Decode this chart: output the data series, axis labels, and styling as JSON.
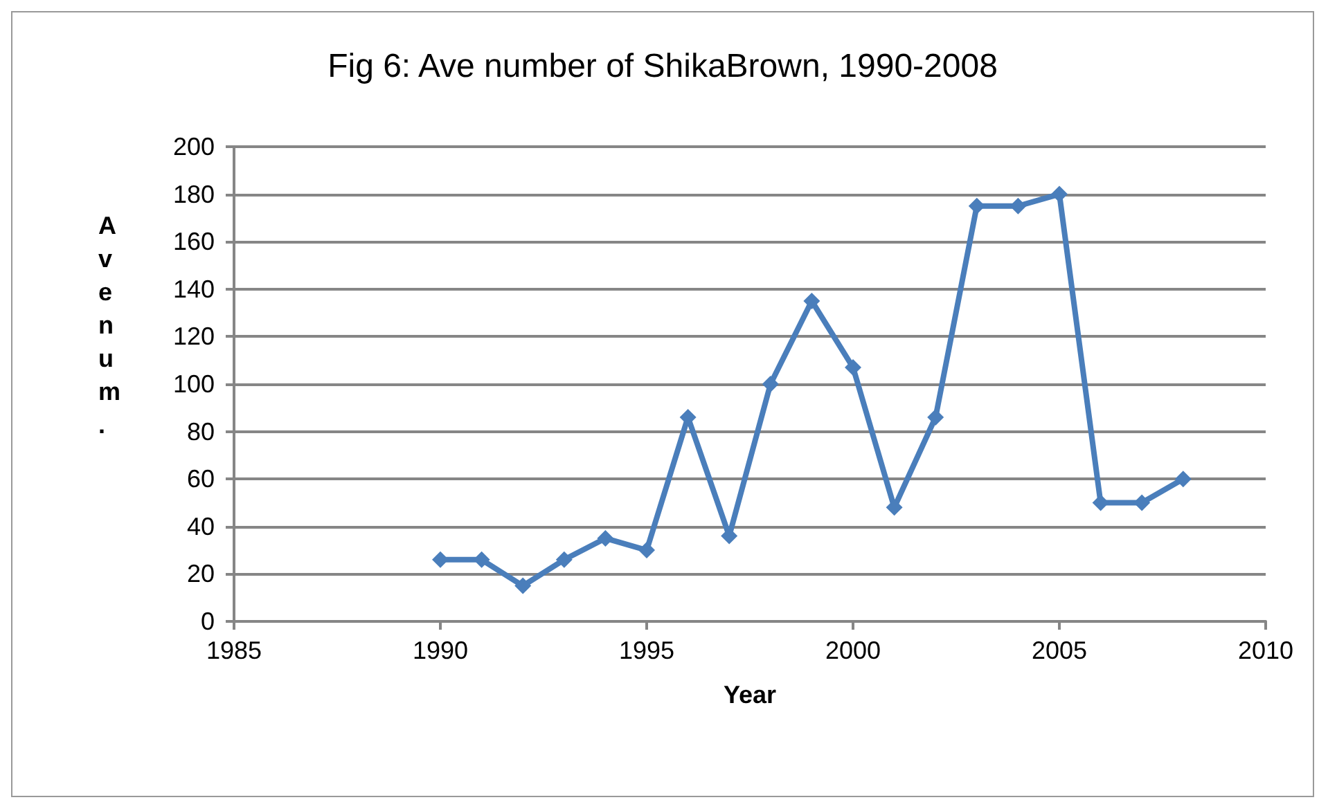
{
  "chart_data": {
    "type": "line",
    "title": "Fig 6: Ave number of ShikaBrown, 1990-2008",
    "xlabel": "Year",
    "ylabel": "Ave num.",
    "x": [
      1990,
      1991,
      1992,
      1993,
      1994,
      1995,
      1996,
      1997,
      1998,
      1999,
      2000,
      2001,
      2002,
      2003,
      2004,
      2005,
      2006,
      2007,
      2008
    ],
    "series": [
      {
        "color": "#4a7ebb",
        "values": [
          26,
          26,
          15,
          26,
          35,
          30,
          86,
          36,
          100,
          135,
          107,
          48,
          86,
          175,
          175,
          180,
          50,
          50,
          60
        ]
      }
    ],
    "xlim": [
      1985,
      2010
    ],
    "xticks": [
      1985,
      1990,
      1995,
      2000,
      2005,
      2010
    ],
    "ylim": [
      0,
      200
    ],
    "yticks": [
      0,
      20,
      40,
      60,
      80,
      100,
      120,
      140,
      160,
      180,
      200
    ],
    "grid": "y",
    "marker": "diamond",
    "line_style": "solid"
  }
}
